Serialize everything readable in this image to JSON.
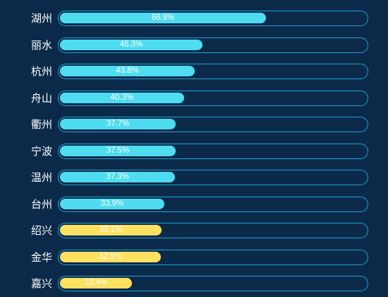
{
  "chart_data": {
    "type": "bar",
    "orientation": "horizontal",
    "title": "",
    "xlabel": "",
    "ylabel": "",
    "xlim": [
      0,
      100
    ],
    "grid": false,
    "legend": "none",
    "categories": [
      "湖州",
      "丽水",
      "杭州",
      "舟山",
      "衢州",
      "宁波",
      "温州",
      "台州",
      "绍兴",
      "金华",
      "嘉兴"
    ],
    "values": [
      66.9,
      46.3,
      43.8,
      40.3,
      37.7,
      37.5,
      37.3,
      33.9,
      33.1,
      32.9,
      23.4
    ],
    "value_labels": [
      "66.9%",
      "46.3%",
      "43.8%",
      "40.3%",
      "37.7%",
      "37.5%",
      "37.3%",
      "33.9%",
      "33.1%",
      "32.9%",
      "23.4%"
    ],
    "bar_colors": [
      "#50dcf0",
      "#50dcf0",
      "#50dcf0",
      "#50dcf0",
      "#50dcf0",
      "#50dcf0",
      "#50dcf0",
      "#50dcf0",
      "#ffe060",
      "#ffe060",
      "#ffe060"
    ]
  },
  "colors": {
    "background": "#0b2a4a",
    "track_border": "#1fa3d6",
    "highlight_fill": "#50dcf0",
    "low_fill": "#ffe060",
    "text": "#ffffff"
  }
}
